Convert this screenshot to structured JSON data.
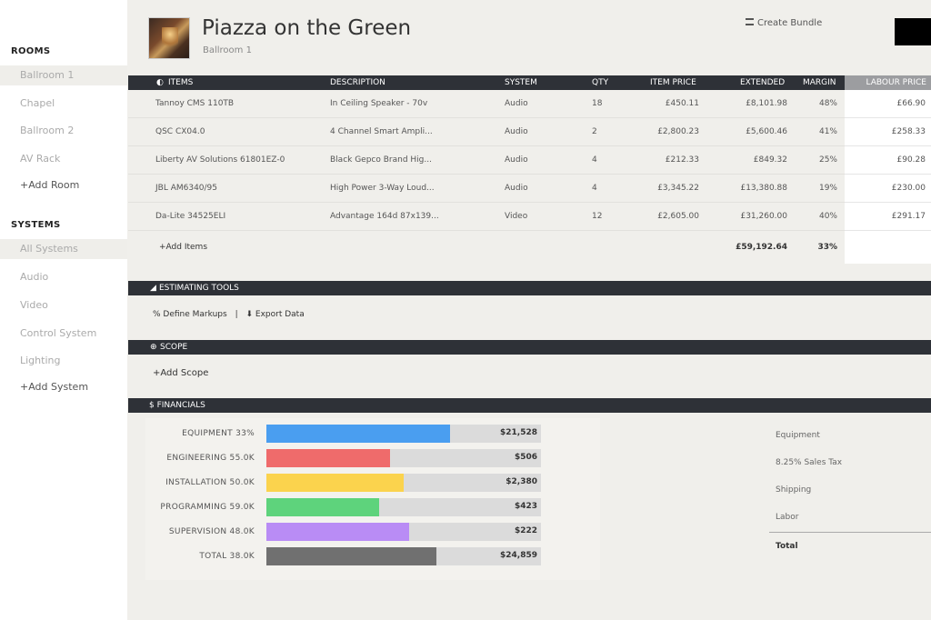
{
  "sidebar": {
    "rooms_heading": "ROOMS",
    "rooms": [
      "Ballroom 1",
      "Chapel",
      "Ballroom 2",
      "AV Rack"
    ],
    "add_room": "+Add Room",
    "systems_heading": "SYSTEMS",
    "systems": [
      "All Systems",
      "Audio",
      "Video",
      "Control System",
      "Lighting"
    ],
    "add_system": "+Add System"
  },
  "header": {
    "title": "Piazza on the Green",
    "subtitle": "Ballroom 1",
    "create_bundle": "Create Bundle"
  },
  "items": {
    "columns": [
      "ITEMS",
      "DESCRIPTION",
      "SYSTEM",
      "QTY",
      "ITEM PRICE",
      "EXTENDED",
      "MARGIN",
      "LABOUR PRICE"
    ],
    "rows": [
      {
        "item": "Tannoy CMS 110TB",
        "description": "In Ceiling Speaker - 70v",
        "system": "Audio",
        "qty": "18",
        "price": "£450.11",
        "extended": "£8,101.98",
        "margin": "48%",
        "labour": "£66.90"
      },
      {
        "item": "QSC CX04.0",
        "description": "4 Channel Smart Ampli...",
        "system": "Audio",
        "qty": "2",
        "price": "£2,800.23",
        "extended": "£5,600.46",
        "margin": "41%",
        "labour": "£258.33"
      },
      {
        "item": "Liberty AV Solutions 61801EZ-0",
        "description": "Black Gepco Brand Hig...",
        "system": "Audio",
        "qty": "4",
        "price": "£212.33",
        "extended": "£849.32",
        "margin": "25%",
        "labour": "£90.28"
      },
      {
        "item": "JBL AM6340/95",
        "description": "High Power 3-Way Loud...",
        "system": "Audio",
        "qty": "4",
        "price": "£3,345.22",
        "extended": "£13,380.88",
        "margin": "19%",
        "labour": "£230.00"
      },
      {
        "item": "Da-Lite 34525ELI",
        "description": "Advantage 164d 87x139...",
        "system": "Video",
        "qty": "12",
        "price": "£2,605.00",
        "extended": "£31,260.00",
        "margin": "40%",
        "labour": "£291.17"
      }
    ],
    "add_items": "+Add Items",
    "total_extended": "£59,192.64",
    "total_margin": "33%"
  },
  "estimating": {
    "title": "ESTIMATING TOOLS",
    "define_markups": "% Define Markups",
    "separator": "|",
    "export_data": "Export Data"
  },
  "scope": {
    "title": "SCOPE",
    "add_scope": "+Add Scope"
  },
  "financials": {
    "title": "$ FINANCIALS",
    "bars": [
      {
        "label": "EQUIPMENT 33%",
        "value": "$21,528",
        "fill": 0.67,
        "color": "#4a9ef0"
      },
      {
        "label": "ENGINEERING 55.0K",
        "value": "$506",
        "fill": 0.45,
        "color": "#ef6b6b"
      },
      {
        "label": "INSTALLATION 50.0K",
        "value": "$2,380",
        "fill": 0.5,
        "color": "#fbd34d"
      },
      {
        "label": "PROGRAMMING 59.0K",
        "value": "$423",
        "fill": 0.41,
        "color": "#5ed37c"
      },
      {
        "label": "SUPERVISION 48.0K",
        "value": "$222",
        "fill": 0.52,
        "color": "#b98cf5"
      },
      {
        "label": "TOTAL 38.0K",
        "value": "$24,859",
        "fill": 0.62,
        "color": "#707070"
      }
    ],
    "summary": [
      "Equipment",
      "8.25% Sales Tax",
      "Shipping",
      "Labor"
    ],
    "summary_total": "Total"
  }
}
